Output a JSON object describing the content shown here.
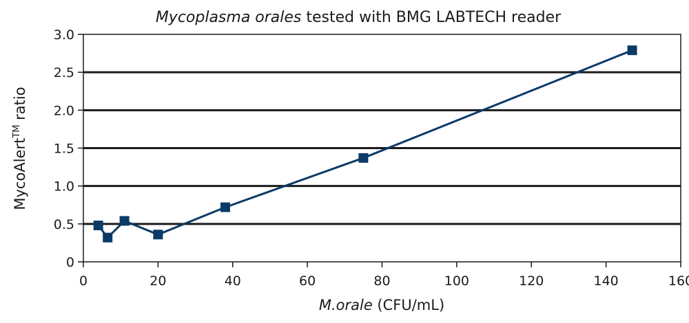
{
  "chart_data": {
    "type": "line",
    "title": {
      "italic_part": "Mycoplasma orales",
      "rest": " tested with BMG LABTECH reader"
    },
    "xlabel": {
      "italic_part": "M.orale",
      "rest": " (CFU/mL)"
    },
    "ylabel": {
      "main": "MycoAlert",
      "superscript": "TM",
      "rest": " ratio"
    },
    "xlim": [
      0,
      160
    ],
    "ylim": [
      0,
      3.0
    ],
    "x_ticks": [
      0,
      20,
      40,
      60,
      80,
      100,
      120,
      140,
      160
    ],
    "x_tick_labels": [
      "0",
      "20",
      "40",
      "60",
      "80",
      "100",
      "120",
      "140",
      "160"
    ],
    "y_ticks": [
      0,
      0.5,
      1.0,
      1.5,
      2.0,
      2.5,
      3.0
    ],
    "y_tick_labels": [
      "0",
      "0.5",
      "1.0",
      "1.5",
      "2.0",
      "2.5",
      "3.0"
    ],
    "grid": "horizontal",
    "series": [
      {
        "color": "#0b3a66",
        "marker": "square",
        "points": [
          {
            "x": 4,
            "y": 0.48
          },
          {
            "x": 6.5,
            "y": 0.32
          },
          {
            "x": 11,
            "y": 0.54
          },
          {
            "x": 20,
            "y": 0.36
          },
          {
            "x": 38,
            "y": 0.72
          },
          {
            "x": 75,
            "y": 1.37
          },
          {
            "x": 147,
            "y": 2.79
          }
        ]
      }
    ]
  }
}
